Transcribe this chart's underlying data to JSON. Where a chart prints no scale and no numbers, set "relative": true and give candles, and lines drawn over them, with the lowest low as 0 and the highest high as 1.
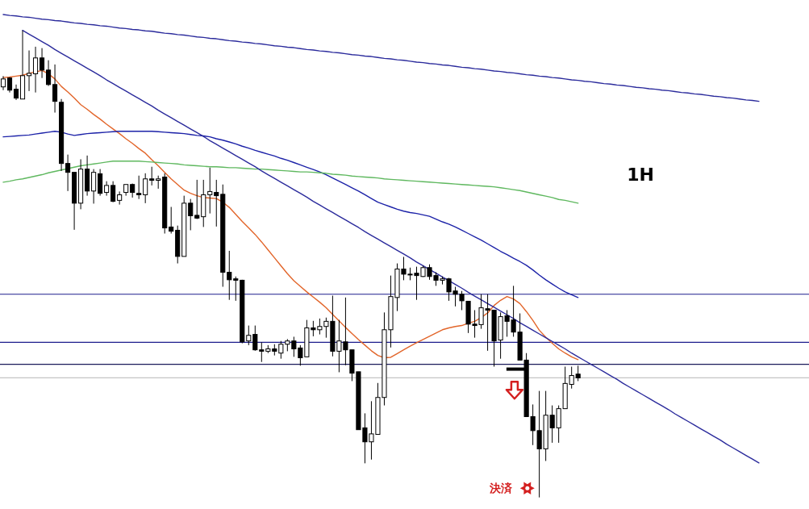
{
  "chart_data": {
    "type": "candlestick",
    "relative": true,
    "categories": [
      null,
      null,
      null,
      null,
      null,
      null,
      null,
      null,
      null,
      null,
      null,
      null,
      null,
      null,
      null,
      null,
      null,
      null,
      null,
      null,
      null,
      null,
      null,
      null,
      null,
      null,
      null,
      null,
      null,
      null,
      null,
      null,
      null,
      null,
      null,
      null,
      null,
      null,
      null,
      null,
      null,
      null,
      null,
      null,
      null,
      null,
      null,
      null,
      null,
      null,
      null,
      null,
      null,
      null,
      null,
      null,
      null,
      null,
      null,
      null,
      null,
      null,
      null,
      null,
      null,
      null,
      null,
      null,
      null,
      null,
      null,
      null,
      null,
      null,
      null,
      null,
      null,
      null,
      null,
      null,
      null,
      null,
      null,
      null,
      null,
      null,
      null,
      null,
      null,
      null,
      null,
      null,
      null,
      null,
      null,
      null,
      null,
      null,
      null,
      null,
      null,
      null,
      null,
      null,
      null,
      null,
      null,
      null,
      null,
      null,
      null,
      null,
      null,
      null,
      null,
      null,
      null,
      null
    ],
    "ohlc": [
      [
        0.879,
        0.902,
        0.872,
        0.896
      ],
      [
        0.898,
        0.9,
        0.867,
        0.872
      ],
      [
        0.874,
        0.884,
        0.851,
        0.855
      ],
      [
        0.853,
        1.0,
        0.853,
        0.903
      ],
      [
        0.903,
        0.957,
        0.87,
        0.908
      ],
      [
        0.907,
        0.965,
        0.867,
        0.941
      ],
      [
        0.941,
        0.962,
        0.898,
        0.915
      ],
      [
        0.915,
        0.936,
        0.881,
        0.884
      ],
      [
        0.884,
        0.927,
        0.824,
        0.848
      ],
      [
        0.846,
        0.853,
        0.699,
        0.715
      ],
      [
        0.715,
        0.734,
        0.656,
        0.696
      ],
      [
        0.696,
        0.696,
        0.573,
        0.63
      ],
      [
        0.63,
        0.724,
        0.617,
        0.703
      ],
      [
        0.703,
        0.732,
        0.646,
        0.656
      ],
      [
        0.656,
        0.703,
        0.629,
        0.696
      ],
      [
        0.693,
        0.703,
        0.646,
        0.651
      ],
      [
        0.653,
        0.677,
        0.646,
        0.668
      ],
      [
        0.668,
        0.677,
        0.632,
        0.634
      ],
      [
        0.636,
        0.655,
        0.627,
        0.648
      ],
      [
        0.653,
        0.67,
        0.646,
        0.67
      ],
      [
        0.67,
        0.672,
        0.642,
        0.653
      ],
      [
        0.651,
        0.689,
        0.639,
        0.648
      ],
      [
        0.648,
        0.694,
        0.63,
        0.682
      ],
      [
        0.682,
        0.708,
        0.668,
        0.679
      ],
      [
        0.679,
        0.689,
        0.661,
        0.682
      ],
      [
        0.686,
        0.694,
        0.565,
        0.577
      ],
      [
        0.579,
        0.622,
        0.565,
        0.57
      ],
      [
        0.572,
        0.582,
        0.501,
        0.516
      ],
      [
        0.516,
        0.646,
        0.516,
        0.63
      ],
      [
        0.63,
        0.639,
        0.572,
        0.603
      ],
      [
        0.604,
        0.68,
        0.596,
        0.598
      ],
      [
        0.601,
        0.68,
        0.579,
        0.648
      ],
      [
        0.648,
        0.706,
        0.608,
        0.655
      ],
      [
        0.653,
        0.68,
        0.58,
        0.646
      ],
      [
        0.649,
        0.67,
        0.451,
        0.482
      ],
      [
        0.482,
        0.528,
        0.423,
        0.466
      ],
      [
        0.468,
        0.473,
        0.421,
        0.465
      ],
      [
        0.465,
        0.466,
        0.33,
        0.333
      ],
      [
        0.335,
        0.368,
        0.326,
        0.347
      ],
      [
        0.349,
        0.368,
        0.314,
        0.316
      ],
      [
        0.316,
        0.332,
        0.29,
        0.313
      ],
      [
        0.313,
        0.326,
        0.309,
        0.318
      ],
      [
        0.318,
        0.328,
        0.304,
        0.313
      ],
      [
        0.309,
        0.335,
        0.297,
        0.328
      ],
      [
        0.328,
        0.339,
        0.313,
        0.335
      ],
      [
        0.335,
        0.344,
        0.301,
        0.318
      ],
      [
        0.32,
        0.326,
        0.282,
        0.299
      ],
      [
        0.301,
        0.38,
        0.301,
        0.363
      ],
      [
        0.363,
        0.378,
        0.345,
        0.359
      ],
      [
        0.359,
        0.383,
        0.349,
        0.366
      ],
      [
        0.366,
        0.385,
        0.342,
        0.377
      ],
      [
        0.377,
        0.432,
        0.302,
        0.313
      ],
      [
        0.313,
        0.38,
        0.268,
        0.335
      ],
      [
        0.333,
        0.428,
        0.283,
        0.316
      ],
      [
        0.316,
        0.316,
        0.249,
        0.266
      ],
      [
        0.269,
        0.269,
        0.145,
        0.145
      ],
      [
        0.149,
        0.18,
        0.073,
        0.119
      ],
      [
        0.119,
        0.206,
        0.081,
        0.136
      ],
      [
        0.135,
        0.245,
        0.135,
        0.214
      ],
      [
        0.214,
        0.396,
        0.197,
        0.359
      ],
      [
        0.359,
        0.475,
        0.321,
        0.43
      ],
      [
        0.428,
        0.501,
        0.399,
        0.489
      ],
      [
        0.489,
        0.515,
        0.465,
        0.478
      ],
      [
        0.478,
        0.492,
        0.465,
        0.477
      ],
      [
        0.48,
        0.494,
        0.423,
        0.475
      ],
      [
        0.473,
        0.496,
        0.472,
        0.492
      ],
      [
        0.492,
        0.499,
        0.466,
        0.473
      ],
      [
        0.475,
        0.482,
        0.453,
        0.465
      ],
      [
        0.465,
        0.473,
        0.456,
        0.468
      ],
      [
        0.468,
        0.47,
        0.421,
        0.44
      ],
      [
        0.442,
        0.451,
        0.409,
        0.435
      ],
      [
        0.435,
        0.442,
        0.401,
        0.421
      ],
      [
        0.42,
        0.42,
        0.352,
        0.371
      ],
      [
        0.371,
        0.401,
        0.342,
        0.368
      ],
      [
        0.37,
        0.435,
        0.361,
        0.406
      ],
      [
        0.404,
        0.435,
        0.314,
        0.401
      ],
      [
        0.401,
        0.401,
        0.28,
        0.335
      ],
      [
        0.337,
        0.396,
        0.297,
        0.387
      ],
      [
        0.389,
        0.401,
        0.344,
        0.377
      ],
      [
        0.38,
        0.453,
        0.344,
        0.354
      ],
      [
        0.354,
        0.394,
        0.294,
        0.294
      ],
      [
        0.294,
        0.309,
        0.173,
        0.173
      ],
      [
        0.173,
        0.199,
        0.112,
        0.143
      ],
      [
        0.143,
        0.228,
        0.0,
        0.104
      ],
      [
        0.104,
        0.228,
        0.078,
        0.176
      ],
      [
        0.176,
        0.197,
        0.117,
        0.149
      ],
      [
        0.149,
        0.197,
        0.117,
        0.19
      ],
      [
        0.19,
        0.28,
        0.19,
        0.244
      ],
      [
        0.242,
        0.28,
        0.233,
        0.261
      ],
      [
        0.264,
        0.282,
        0.249,
        0.256
      ],
      null,
      null,
      null,
      null,
      null,
      null,
      null,
      null,
      null,
      null,
      null,
      null,
      null,
      null,
      null,
      null,
      null,
      null,
      null,
      null,
      null,
      null,
      null,
      null,
      null,
      null,
      null,
      null
    ],
    "series": [
      {
        "type": "line",
        "color": "#e2652a",
        "values": [
          0.899,
          0.9,
          0.902,
          0.904,
          0.908,
          0.911,
          0.914,
          0.907,
          0.896,
          0.88,
          0.868,
          0.855,
          0.841,
          0.831,
          0.82,
          0.81,
          0.799,
          0.789,
          0.779,
          0.768,
          0.758,
          0.747,
          0.737,
          0.723,
          0.71,
          0.696,
          0.682,
          0.67,
          0.658,
          0.651,
          0.646,
          0.642,
          0.641,
          0.64,
          0.632,
          0.621,
          0.606,
          0.591,
          0.577,
          0.563,
          0.547,
          0.53,
          0.513,
          0.496,
          0.479,
          0.464,
          0.452,
          0.44,
          0.429,
          0.418,
          0.406,
          0.392,
          0.378,
          0.364,
          0.351,
          0.338,
          0.326,
          0.314,
          0.304,
          0.299,
          0.3,
          0.308,
          0.316,
          0.324,
          0.331,
          0.338,
          0.345,
          0.352,
          0.359,
          0.363,
          0.366,
          0.368,
          0.373,
          0.377,
          0.385,
          0.395,
          0.411,
          0.422,
          0.43,
          0.425,
          0.415,
          0.398,
          0.379,
          0.358,
          0.343,
          0.33,
          0.318,
          0.309,
          0.301,
          0.295,
          null,
          null,
          null,
          null,
          null,
          null,
          null,
          null,
          null,
          null,
          null,
          null,
          null,
          null,
          null,
          null,
          null,
          null,
          null,
          null,
          null,
          null,
          null,
          null,
          null,
          null,
          null,
          null
        ]
      },
      {
        "type": "line",
        "color": "#1c22a8",
        "values": [
          0.772,
          0.773,
          0.774,
          0.775,
          0.776,
          0.778,
          0.78,
          0.782,
          0.784,
          0.782,
          0.778,
          0.775,
          0.777,
          0.779,
          0.78,
          0.781,
          0.782,
          0.783,
          0.784,
          0.784,
          0.784,
          0.784,
          0.784,
          0.784,
          0.783,
          0.782,
          0.781,
          0.78,
          0.779,
          0.777,
          0.775,
          0.774,
          0.772,
          0.768,
          0.765,
          0.761,
          0.757,
          0.752,
          0.748,
          0.743,
          0.739,
          0.735,
          0.731,
          0.726,
          0.722,
          0.717,
          0.712,
          0.707,
          0.702,
          0.697,
          0.691,
          0.684,
          0.677,
          0.67,
          0.663,
          0.656,
          0.648,
          0.64,
          0.632,
          0.627,
          0.622,
          0.617,
          0.613,
          0.61,
          0.608,
          0.605,
          0.602,
          0.596,
          0.59,
          0.585,
          0.579,
          0.572,
          0.565,
          0.558,
          0.551,
          0.543,
          0.535,
          0.527,
          0.52,
          0.512,
          0.505,
          0.497,
          0.487,
          0.476,
          0.466,
          0.457,
          0.448,
          0.44,
          0.434,
          0.428,
          null,
          null,
          null,
          null,
          null,
          null,
          null,
          null,
          null,
          null,
          null,
          null,
          null,
          null,
          null,
          null,
          null,
          null,
          null,
          null,
          null,
          null,
          null,
          null,
          null,
          null,
          null,
          null
        ]
      },
      {
        "type": "line",
        "color": "#5fb85f",
        "values": [
          0.675,
          0.677,
          0.68,
          0.682,
          0.685,
          0.688,
          0.691,
          0.695,
          0.698,
          0.701,
          0.704,
          0.707,
          0.71,
          0.712,
          0.714,
          0.716,
          0.718,
          0.72,
          0.72,
          0.72,
          0.72,
          0.72,
          0.719,
          0.718,
          0.717,
          0.716,
          0.715,
          0.714,
          0.712,
          0.711,
          0.71,
          0.709,
          0.708,
          0.708,
          0.707,
          0.706,
          0.706,
          0.705,
          0.704,
          0.703,
          0.703,
          0.702,
          0.701,
          0.7,
          0.699,
          0.698,
          0.697,
          0.697,
          0.696,
          0.695,
          0.694,
          0.692,
          0.691,
          0.69,
          0.688,
          0.687,
          0.686,
          0.685,
          0.684,
          0.682,
          0.681,
          0.68,
          0.679,
          0.678,
          0.677,
          0.676,
          0.675,
          0.674,
          0.673,
          0.672,
          0.671,
          0.67,
          0.669,
          0.668,
          0.667,
          0.666,
          0.665,
          0.663,
          0.661,
          0.659,
          0.657,
          0.654,
          0.651,
          0.648,
          0.645,
          0.642,
          0.638,
          0.636,
          0.633,
          0.63,
          null,
          null,
          null,
          null,
          null,
          null,
          null,
          null,
          null,
          null,
          null,
          null,
          null,
          null,
          null,
          null,
          null,
          null,
          null,
          null,
          null,
          null,
          null,
          null,
          null,
          null,
          null,
          null
        ]
      },
      {
        "type": "line",
        "color": "#2b2b9c",
        "values": [
          1.034,
          1.032,
          1.031,
          1.029,
          1.028,
          1.026,
          1.024,
          1.023,
          1.021,
          1.02,
          1.018,
          1.016,
          1.015,
          1.013,
          1.012,
          1.01,
          1.009,
          1.007,
          1.005,
          1.004,
          1.002,
          1.001,
          0.999,
          0.998,
          0.996,
          0.994,
          0.993,
          0.991,
          0.99,
          0.988,
          0.986,
          0.985,
          0.983,
          0.982,
          0.98,
          0.978,
          0.977,
          0.975,
          0.974,
          0.972,
          0.971,
          0.969,
          0.967,
          0.966,
          0.964,
          0.963,
          0.961,
          0.959,
          0.958,
          0.956,
          0.955,
          0.953,
          0.952,
          0.95,
          0.948,
          0.947,
          0.945,
          0.944,
          0.942,
          0.94,
          0.939,
          0.937,
          0.936,
          0.934,
          0.932,
          0.931,
          0.929,
          0.928,
          0.926,
          0.925,
          0.923,
          0.921,
          0.92,
          0.918,
          0.917,
          0.915,
          0.913,
          0.912,
          0.91,
          0.909,
          0.907,
          0.905,
          0.904,
          0.902,
          0.901,
          0.899,
          0.898,
          0.896,
          0.894,
          0.893,
          0.891,
          0.89,
          0.888,
          0.886,
          0.885,
          0.883,
          0.882,
          0.88,
          0.878,
          0.877,
          0.875,
          0.874,
          0.872,
          0.871,
          0.869,
          0.867,
          0.866,
          0.864,
          0.863,
          0.861,
          0.859,
          0.858,
          0.856,
          0.855,
          0.853,
          0.851,
          0.85,
          0.848
        ]
      },
      {
        "type": "line",
        "color": "#2b2b9c",
        "values": [
          null,
          null,
          null,
          1.0,
          0.992,
          0.984,
          0.976,
          0.968,
          0.959,
          0.951,
          0.943,
          0.935,
          0.927,
          0.919,
          0.911,
          0.903,
          0.894,
          0.886,
          0.878,
          0.87,
          0.862,
          0.854,
          0.846,
          0.838,
          0.829,
          0.821,
          0.813,
          0.805,
          0.797,
          0.789,
          0.781,
          0.773,
          0.764,
          0.756,
          0.748,
          0.74,
          0.732,
          0.724,
          0.716,
          0.708,
          0.699,
          0.691,
          0.683,
          0.675,
          0.667,
          0.659,
          0.651,
          0.643,
          0.634,
          0.626,
          0.618,
          0.61,
          0.602,
          0.594,
          0.586,
          0.578,
          0.569,
          0.561,
          0.553,
          0.545,
          0.537,
          0.529,
          0.521,
          0.513,
          0.504,
          0.496,
          0.488,
          0.48,
          0.472,
          0.464,
          0.456,
          0.448,
          0.439,
          0.431,
          0.423,
          0.415,
          0.407,
          0.399,
          0.391,
          0.383,
          0.374,
          0.366,
          0.358,
          0.35,
          0.342,
          0.334,
          0.326,
          0.318,
          0.309,
          0.301,
          0.293,
          0.285,
          0.277,
          0.269,
          0.261,
          0.253,
          0.244,
          0.236,
          0.228,
          0.22,
          0.212,
          0.204,
          0.196,
          0.188,
          0.179,
          0.171,
          0.163,
          0.155,
          0.147,
          0.139,
          0.131,
          0.123,
          0.114,
          0.106,
          0.098,
          0.09,
          0.082,
          0.074
        ]
      }
    ],
    "ref_lines": [
      {
        "axis": "y",
        "value": 0.435,
        "color": "#1c1c8c"
      },
      {
        "axis": "y",
        "value": 0.332,
        "color": "#1c1c8c"
      },
      {
        "axis": "y",
        "value": 0.285,
        "color": "#1a1a5a"
      },
      {
        "axis": "y",
        "value": 0.256,
        "color": "#c4c4c4"
      }
    ],
    "annotations": [
      "1H",
      "決済"
    ]
  }
}
